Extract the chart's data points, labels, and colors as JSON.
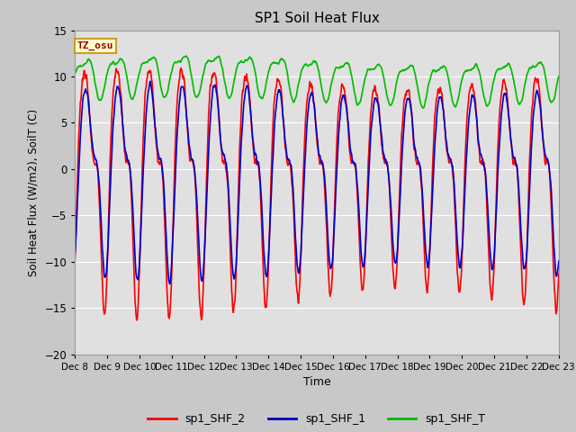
{
  "title": "SP1 Soil Heat Flux",
  "xlabel": "Time",
  "ylabel": "Soil Heat Flux (W/m2), SoilT (C)",
  "ylim": [
    -20,
    15
  ],
  "yticks": [
    -20,
    -15,
    -10,
    -5,
    0,
    5,
    10,
    15
  ],
  "fig_bg_color": "#c8c8c8",
  "plot_bg_color": "#e0e0e0",
  "grid_color": "#ffffff",
  "line_colors": {
    "sp1_SHF_2": "#ff0000",
    "sp1_SHF_1": "#0000cc",
    "sp1_SHF_T": "#00bb00"
  },
  "legend_labels": [
    "sp1_SHF_2",
    "sp1_SHF_1",
    "sp1_SHF_T"
  ],
  "tz_label": "TZ_osu",
  "tz_bg": "#ffffcc",
  "tz_border": "#cc8800"
}
